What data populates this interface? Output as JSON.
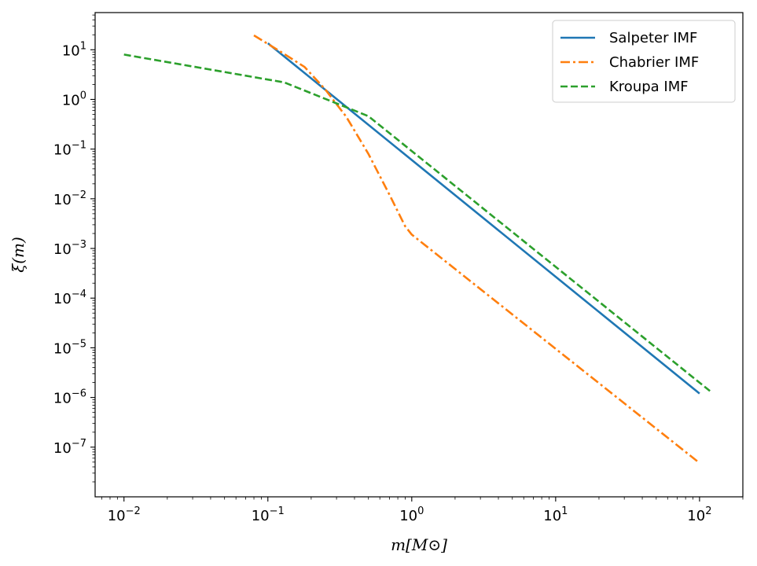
{
  "chart_data": {
    "type": "line",
    "xscale": "log",
    "yscale": "log",
    "xlim": [
      0.0063,
      200
    ],
    "ylim": [
      1e-08,
      56
    ],
    "xlabel": "m[M⊙]",
    "ylabel": "ξ(m)",
    "x_ticks": [
      {
        "value": 0.01,
        "base": "10",
        "exp": "−2"
      },
      {
        "value": 0.1,
        "base": "10",
        "exp": "−1"
      },
      {
        "value": 1,
        "base": "10",
        "exp": "0"
      },
      {
        "value": 10,
        "base": "10",
        "exp": "1"
      },
      {
        "value": 100,
        "base": "10",
        "exp": "2"
      }
    ],
    "y_ticks": [
      {
        "value": 1e-07,
        "base": "10",
        "exp": "−7"
      },
      {
        "value": 1e-06,
        "base": "10",
        "exp": "−6"
      },
      {
        "value": 1e-05,
        "base": "10",
        "exp": "−5"
      },
      {
        "value": 0.0001,
        "base": "10",
        "exp": "−4"
      },
      {
        "value": 0.001,
        "base": "10",
        "exp": "−3"
      },
      {
        "value": 0.01,
        "base": "10",
        "exp": "−2"
      },
      {
        "value": 0.1,
        "base": "10",
        "exp": "−1"
      },
      {
        "value": 1,
        "base": "10",
        "exp": "0"
      },
      {
        "value": 10,
        "base": "10",
        "exp": "1"
      }
    ],
    "legend_position": "top-right",
    "grid": false,
    "series": [
      {
        "name": "Salpeter IMF",
        "color": "#1f77b4",
        "dash": "solid",
        "points": [
          [
            0.1,
            13.5
          ],
          [
            100,
            1.2e-06
          ]
        ]
      },
      {
        "name": "Chabrier IMF",
        "color": "#ff7f0e",
        "dash": "dashdot",
        "points": [
          [
            0.08,
            19.5
          ],
          [
            0.12,
            9.5
          ],
          [
            0.18,
            4.5
          ],
          [
            0.25,
            1.6
          ],
          [
            0.35,
            0.45
          ],
          [
            0.5,
            0.08
          ],
          [
            0.7,
            0.012
          ],
          [
            0.9,
            0.0028
          ],
          [
            1.0,
            0.0019
          ],
          [
            100,
            4.8e-08
          ]
        ]
      },
      {
        "name": "Kroupa IMF",
        "color": "#2ca02c",
        "dash": "dashed",
        "points": [
          [
            0.01,
            8.0
          ],
          [
            0.13,
            2.2
          ],
          [
            0.5,
            0.46
          ],
          [
            120,
            1.3e-06
          ]
        ]
      }
    ]
  }
}
